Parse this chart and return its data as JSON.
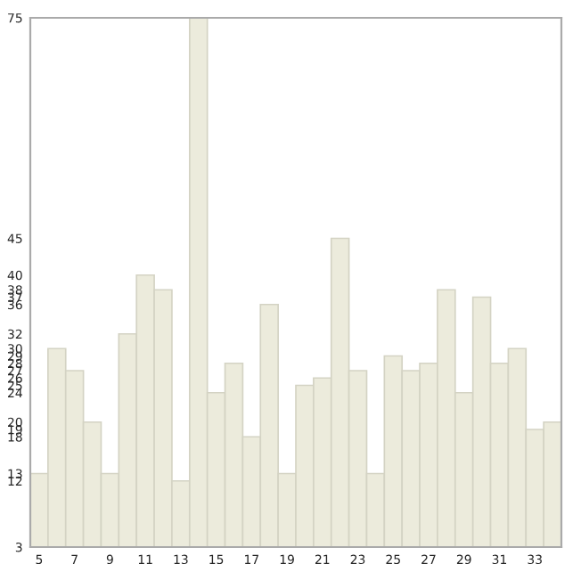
{
  "chart_data": {
    "type": "bar",
    "categories": [
      "5",
      null,
      "7",
      null,
      "9",
      null,
      "11",
      null,
      "13",
      null,
      "15",
      null,
      "17",
      null,
      "19",
      null,
      "21",
      null,
      "23",
      null,
      "25",
      null,
      "27",
      null,
      "29",
      null,
      "31",
      null,
      "33",
      null
    ],
    "values": [
      13,
      30,
      27,
      20,
      13,
      32,
      40,
      38,
      12,
      75,
      24,
      28,
      18,
      36,
      13,
      25,
      26,
      45,
      27,
      13,
      29,
      27,
      28,
      38,
      24,
      37,
      28,
      30,
      19,
      20
    ],
    "color": "#ecebdc",
    "ylim": [
      3,
      75
    ],
    "yticks": [
      3,
      12,
      13,
      18,
      19,
      20,
      24,
      25,
      26,
      27,
      28,
      29,
      30,
      32,
      36,
      37,
      38,
      40,
      45,
      75
    ],
    "grid": false
  }
}
